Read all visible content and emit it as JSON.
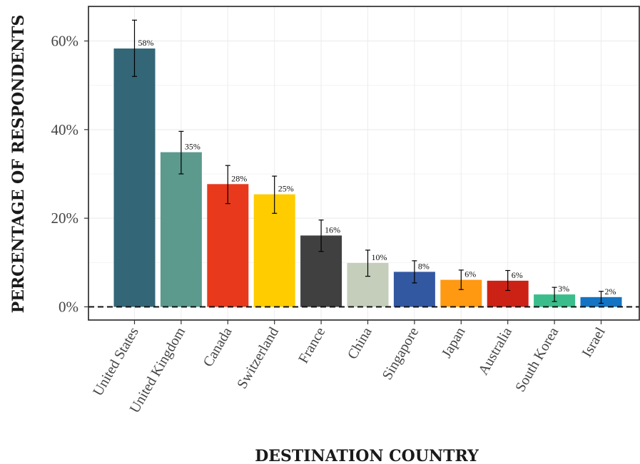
{
  "chart_data": {
    "type": "bar",
    "xlabel": "DESTINATION COUNTRY",
    "ylabel": "PERCENTAGE OF RESPONDENTS",
    "ylim": [
      0,
      0.68
    ],
    "yticks": [
      0,
      0.2,
      0.4,
      0.6
    ],
    "ytick_labels": [
      "0%",
      "20%",
      "40%",
      "60%"
    ],
    "grid": true,
    "reference_line": 0,
    "categories": [
      "United States",
      "United Kingdom",
      "Canada",
      "Switzerland",
      "France",
      "China",
      "Singapore",
      "Japan",
      "Australia",
      "South Korea",
      "Israel"
    ],
    "values": [
      0.583,
      0.349,
      0.277,
      0.254,
      0.161,
      0.099,
      0.079,
      0.061,
      0.059,
      0.028,
      0.022
    ],
    "labels": [
      "58%",
      "35%",
      "28%",
      "25%",
      "16%",
      "10%",
      "8%",
      "6%",
      "6%",
      "3%",
      "2%"
    ],
    "error_low": [
      0.52,
      0.3,
      0.233,
      0.211,
      0.125,
      0.069,
      0.054,
      0.039,
      0.037,
      0.012,
      0.008
    ],
    "error_high": [
      0.647,
      0.396,
      0.319,
      0.295,
      0.196,
      0.128,
      0.104,
      0.083,
      0.082,
      0.044,
      0.035
    ],
    "colors": [
      "#336677",
      "#5c9a8e",
      "#e8391c",
      "#ffcc00",
      "#404040",
      "#c5cebb",
      "#3358a2",
      "#ff9912",
      "#cc2215",
      "#3bbd8b",
      "#1473c2"
    ]
  }
}
